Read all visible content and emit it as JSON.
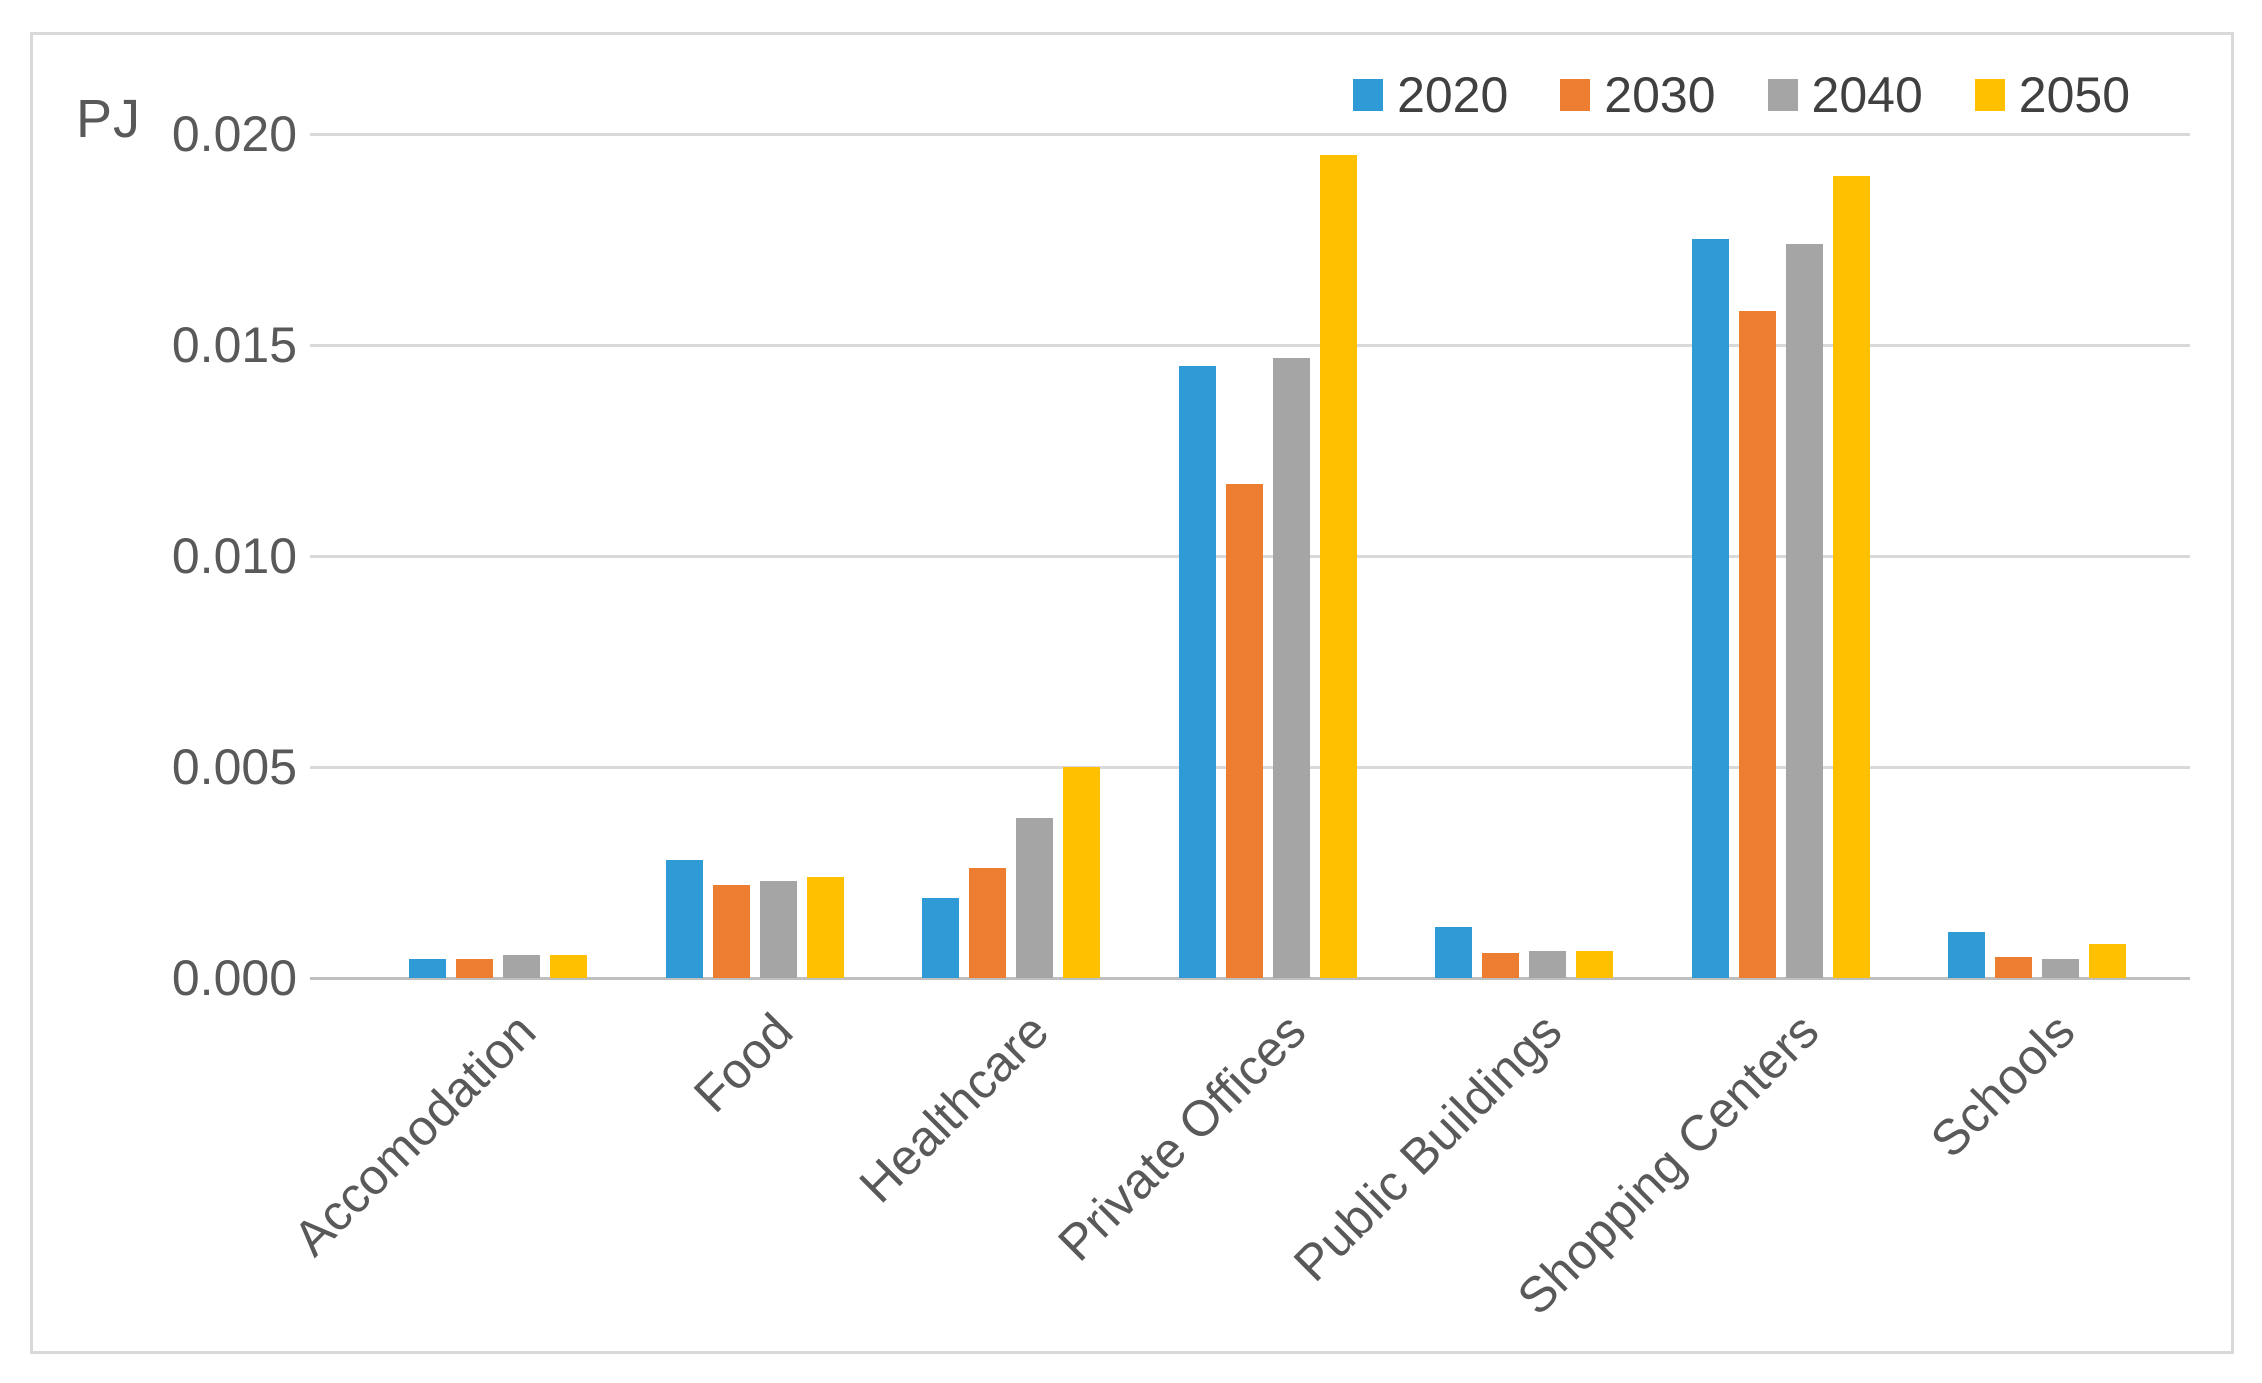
{
  "figure": {
    "unit_label": "PJ"
  },
  "legend": {
    "position": "top-right",
    "items": [
      {
        "label": "2020",
        "color": "#2E9AD6"
      },
      {
        "label": "2030",
        "color": "#ED7D31"
      },
      {
        "label": "2040",
        "color": "#A5A5A5"
      },
      {
        "label": "2050",
        "color": "#FFC000"
      }
    ]
  },
  "y_axis": {
    "tick_labels": [
      "0.020",
      "0.015",
      "0.010",
      "0.005",
      "0.000"
    ]
  },
  "colors": {
    "gridline": "#D9D9D9",
    "axis_line": "#BFBFBF",
    "text": "#595959",
    "frame_border": "#D9D9D9"
  },
  "chart_data": {
    "type": "bar",
    "title": "",
    "ylabel": "PJ",
    "xlabel": "",
    "categories": [
      "Accomodation",
      "Food",
      "Healthcare",
      "Private Offices",
      "Public Buildings",
      "Shopping Centers",
      "Schools"
    ],
    "series": [
      {
        "name": "2020",
        "color": "#2E9AD6",
        "values": [
          0.00045,
          0.0028,
          0.0019,
          0.0145,
          0.0012,
          0.0175,
          0.0011
        ]
      },
      {
        "name": "2030",
        "color": "#ED7D31",
        "values": [
          0.00045,
          0.0022,
          0.0026,
          0.0117,
          0.0006,
          0.0158,
          0.0005
        ]
      },
      {
        "name": "2040",
        "color": "#A5A5A5",
        "values": [
          0.00055,
          0.0023,
          0.0038,
          0.0147,
          0.00065,
          0.0174,
          0.00045
        ]
      },
      {
        "name": "2050",
        "color": "#FFC000",
        "values": [
          0.00055,
          0.0024,
          0.005,
          0.0195,
          0.00065,
          0.019,
          0.0008
        ]
      }
    ],
    "ylim": [
      0,
      0.02
    ],
    "y_tick_step": 0.005,
    "grid": true,
    "legend_position": "top-right"
  }
}
